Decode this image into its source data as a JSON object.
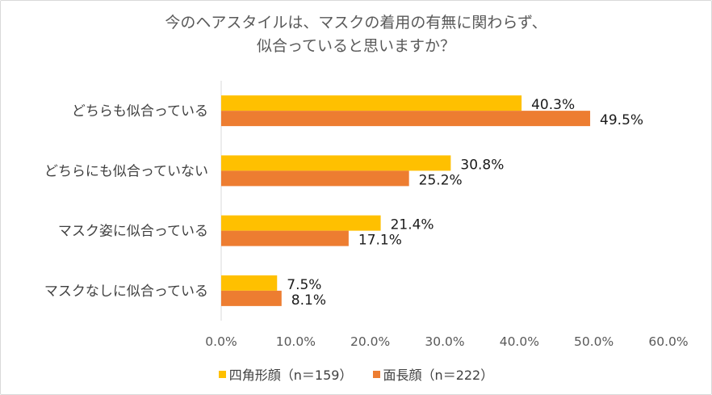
{
  "chart_data": {
    "type": "bar",
    "orientation": "horizontal",
    "title_line1": "今のヘアスタイルは、マスクの着用の有無に関わらず、",
    "title_line2": "似合っていると思いますか？",
    "categories": [
      "どちらも似合っている",
      "どちらにも似合っていない",
      "マスク姿に似合っている",
      "マスクなしに似合っている"
    ],
    "series": [
      {
        "name": "四角形顔（n＝159）",
        "color": "#FFC000",
        "values": [
          40.3,
          30.8,
          21.4,
          7.5
        ],
        "labels": [
          "40.3%",
          "30.8%",
          "21.4%",
          "7.5%"
        ]
      },
      {
        "name": "面長顔（n＝222）",
        "color": "#ED7D31",
        "values": [
          49.5,
          25.2,
          17.1,
          8.1
        ],
        "labels": [
          "49.5%",
          "25.2%",
          "17.1%",
          "8.1%"
        ]
      }
    ],
    "xlim": [
      0,
      60
    ],
    "xticks": [
      "0.0%",
      "10.0%",
      "20.0%",
      "30.0%",
      "40.0%",
      "50.0%",
      "60.0%"
    ],
    "xlabel": "",
    "ylabel": "",
    "grid": false,
    "legend_position": "bottom"
  }
}
